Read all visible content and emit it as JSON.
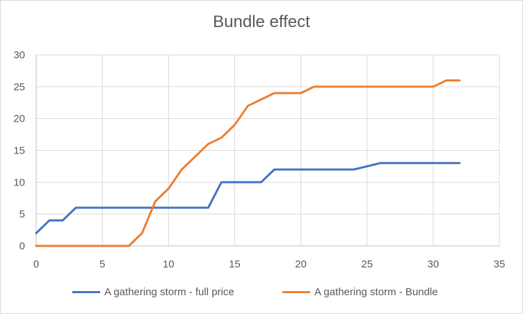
{
  "chart_data": {
    "type": "line",
    "title": "Bundle effect",
    "xlabel": "",
    "ylabel": "",
    "xlim": [
      0,
      35
    ],
    "ylim": [
      0,
      30
    ],
    "x_ticks": [
      0,
      5,
      10,
      15,
      20,
      25,
      30,
      35
    ],
    "y_ticks": [
      0,
      5,
      10,
      15,
      20,
      25,
      30
    ],
    "grid": true,
    "legend_position": "bottom",
    "series": [
      {
        "name": "A gathering storm - full price",
        "color": "#4472C4",
        "x": [
          0,
          1,
          2,
          3,
          4,
          5,
          6,
          7,
          8,
          9,
          10,
          11,
          12,
          13,
          14,
          15,
          16,
          17,
          18,
          19,
          20,
          21,
          22,
          23,
          24,
          25,
          26,
          27,
          28,
          29,
          30,
          31,
          32
        ],
        "y": [
          2,
          4,
          4,
          6,
          6,
          6,
          6,
          6,
          6,
          6,
          6,
          6,
          6,
          6,
          10,
          10,
          10,
          10,
          12,
          12,
          12,
          12,
          12,
          12,
          12,
          12.5,
          13,
          13,
          13,
          13,
          13,
          13,
          13
        ]
      },
      {
        "name": "A gathering storm - Bundle",
        "color": "#ED7D31",
        "x": [
          0,
          1,
          2,
          3,
          4,
          5,
          6,
          7,
          8,
          9,
          10,
          11,
          12,
          13,
          14,
          15,
          16,
          17,
          18,
          19,
          20,
          21,
          22,
          23,
          24,
          25,
          26,
          27,
          28,
          29,
          30,
          31,
          32
        ],
        "y": [
          0,
          0,
          0,
          0,
          0,
          0,
          0,
          0,
          2,
          7,
          9,
          12,
          14,
          16,
          17,
          19,
          22,
          23,
          24,
          24,
          24,
          25,
          25,
          25,
          25,
          25,
          25,
          25,
          25,
          25,
          25,
          26,
          26
        ]
      }
    ]
  }
}
